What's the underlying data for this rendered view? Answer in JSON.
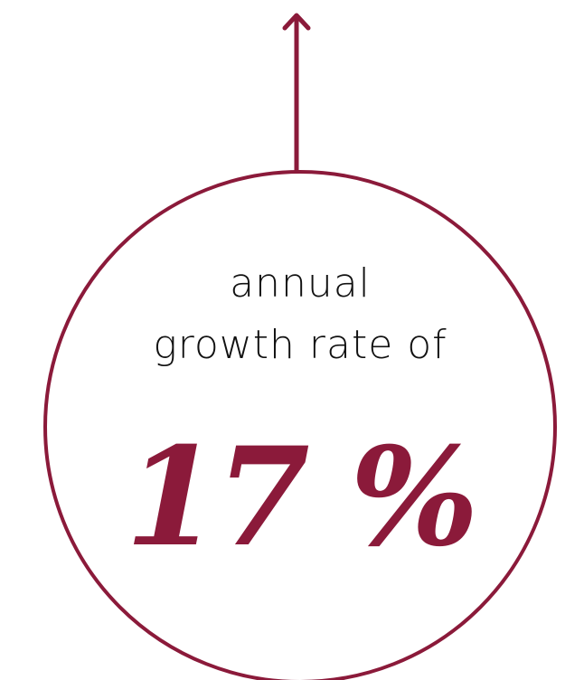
{
  "caption": {
    "line1": "annual",
    "line2": "growth rate of"
  },
  "value": {
    "number": "17",
    "unit": "%",
    "display": "17 %"
  },
  "colors": {
    "accent": "#8B1A3A",
    "text": "#111111",
    "background": "#ffffff"
  },
  "icons": {
    "arrow": "arrow-up-icon"
  }
}
